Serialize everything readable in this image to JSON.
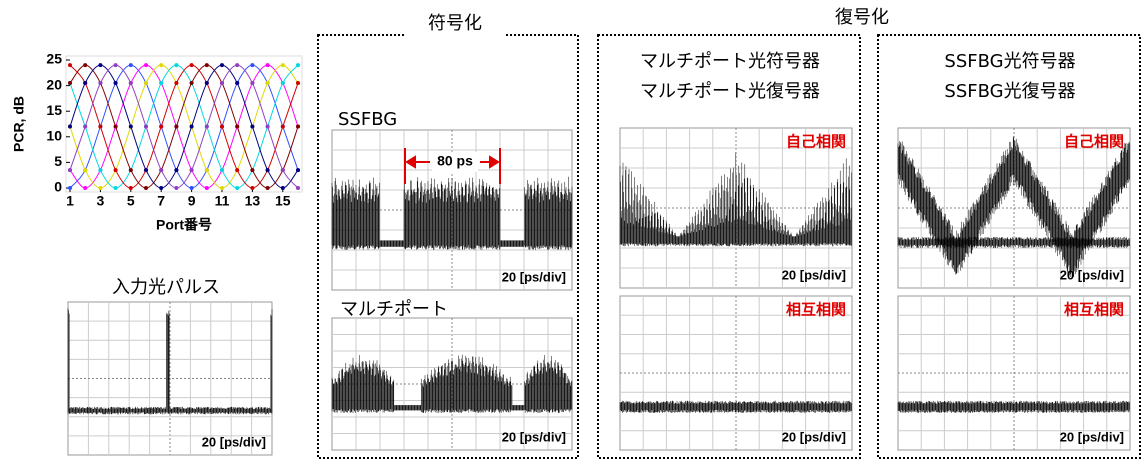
{
  "chart_data": {
    "type": "line",
    "y_label": "PCR, dB",
    "x_label": "Port番号",
    "x": [
      1,
      2,
      3,
      4,
      5,
      6,
      7,
      8,
      9,
      10,
      11,
      12,
      13,
      14,
      15,
      16
    ],
    "xlim": [
      1,
      16
    ],
    "ylim": [
      0,
      25
    ],
    "xticks": [
      1,
      3,
      5,
      7,
      9,
      11,
      13,
      15
    ],
    "yticks": [
      0,
      5,
      10,
      15,
      20,
      25
    ],
    "series": [
      {
        "color": "#3050ff",
        "values": [
          0,
          3.5,
          12,
          20.5,
          24,
          20.5,
          12,
          3.5,
          0,
          3.5,
          12,
          20.5,
          24,
          20.5,
          12,
          3.5
        ]
      },
      {
        "color": "#ff00ff",
        "values": [
          3.5,
          0,
          3.5,
          12,
          20.5,
          24,
          20.5,
          12,
          3.5,
          0,
          3.5,
          12,
          20.5,
          24,
          20.5,
          12
        ]
      },
      {
        "color": "#e0d800",
        "values": [
          12,
          3.5,
          0,
          3.5,
          12,
          20.5,
          24,
          20.5,
          12,
          3.5,
          0,
          3.5,
          12,
          20.5,
          24,
          20.5
        ]
      },
      {
        "color": "#00d8e0",
        "values": [
          20.5,
          12,
          3.5,
          0,
          3.5,
          12,
          20.5,
          24,
          20.5,
          12,
          3.5,
          0,
          3.5,
          12,
          20.5,
          24
        ]
      },
      {
        "color": "#d00000",
        "values": [
          24,
          20.5,
          12,
          3.5,
          0,
          3.5,
          12,
          20.5,
          24,
          20.5,
          12,
          3.5,
          0,
          3.5,
          12,
          20.5
        ]
      },
      {
        "color": "#800000",
        "values": [
          20.5,
          24,
          20.5,
          12,
          3.5,
          0,
          3.5,
          12,
          20.5,
          24,
          20.5,
          12,
          3.5,
          0,
          3.5,
          12
        ]
      },
      {
        "color": "#000080",
        "values": [
          12,
          20.5,
          24,
          20.5,
          12,
          3.5,
          0,
          3.5,
          12,
          20.5,
          24,
          20.5,
          12,
          3.5,
          0,
          3.5
        ]
      },
      {
        "color": "#9040c0",
        "values": [
          3.5,
          12,
          20.5,
          24,
          20.5,
          12,
          3.5,
          0,
          3.5,
          12,
          20.5,
          24,
          20.5,
          12,
          3.5,
          0
        ]
      }
    ]
  },
  "headings": {
    "encoding": "符号化",
    "decoding": "復号化"
  },
  "input_pulse": {
    "title": "入力光パルス",
    "scale": "20 [ps/div]"
  },
  "encoder_ssfbg": {
    "title": "SSFBG",
    "annotation": "80 ps",
    "scale": "20 [ps/div]"
  },
  "encoder_multiport": {
    "title": "マルチポート",
    "scale": "20 [ps/div]"
  },
  "multiport": {
    "titles": [
      "マルチポート光符号器",
      "マルチポート光復号器"
    ],
    "auto": {
      "label": "自己相関",
      "scale": "20 [ps/div]"
    },
    "cross": {
      "label": "相互相関",
      "scale": "20 [ps/div]"
    }
  },
  "ssfbg": {
    "titles": [
      "SSFBG光符号器",
      "SSFBG光復号器"
    ],
    "auto": {
      "label": "自己相関",
      "scale": "20 [ps/div]"
    },
    "cross": {
      "label": "相互相関",
      "scale": "20 [ps/div]"
    }
  }
}
